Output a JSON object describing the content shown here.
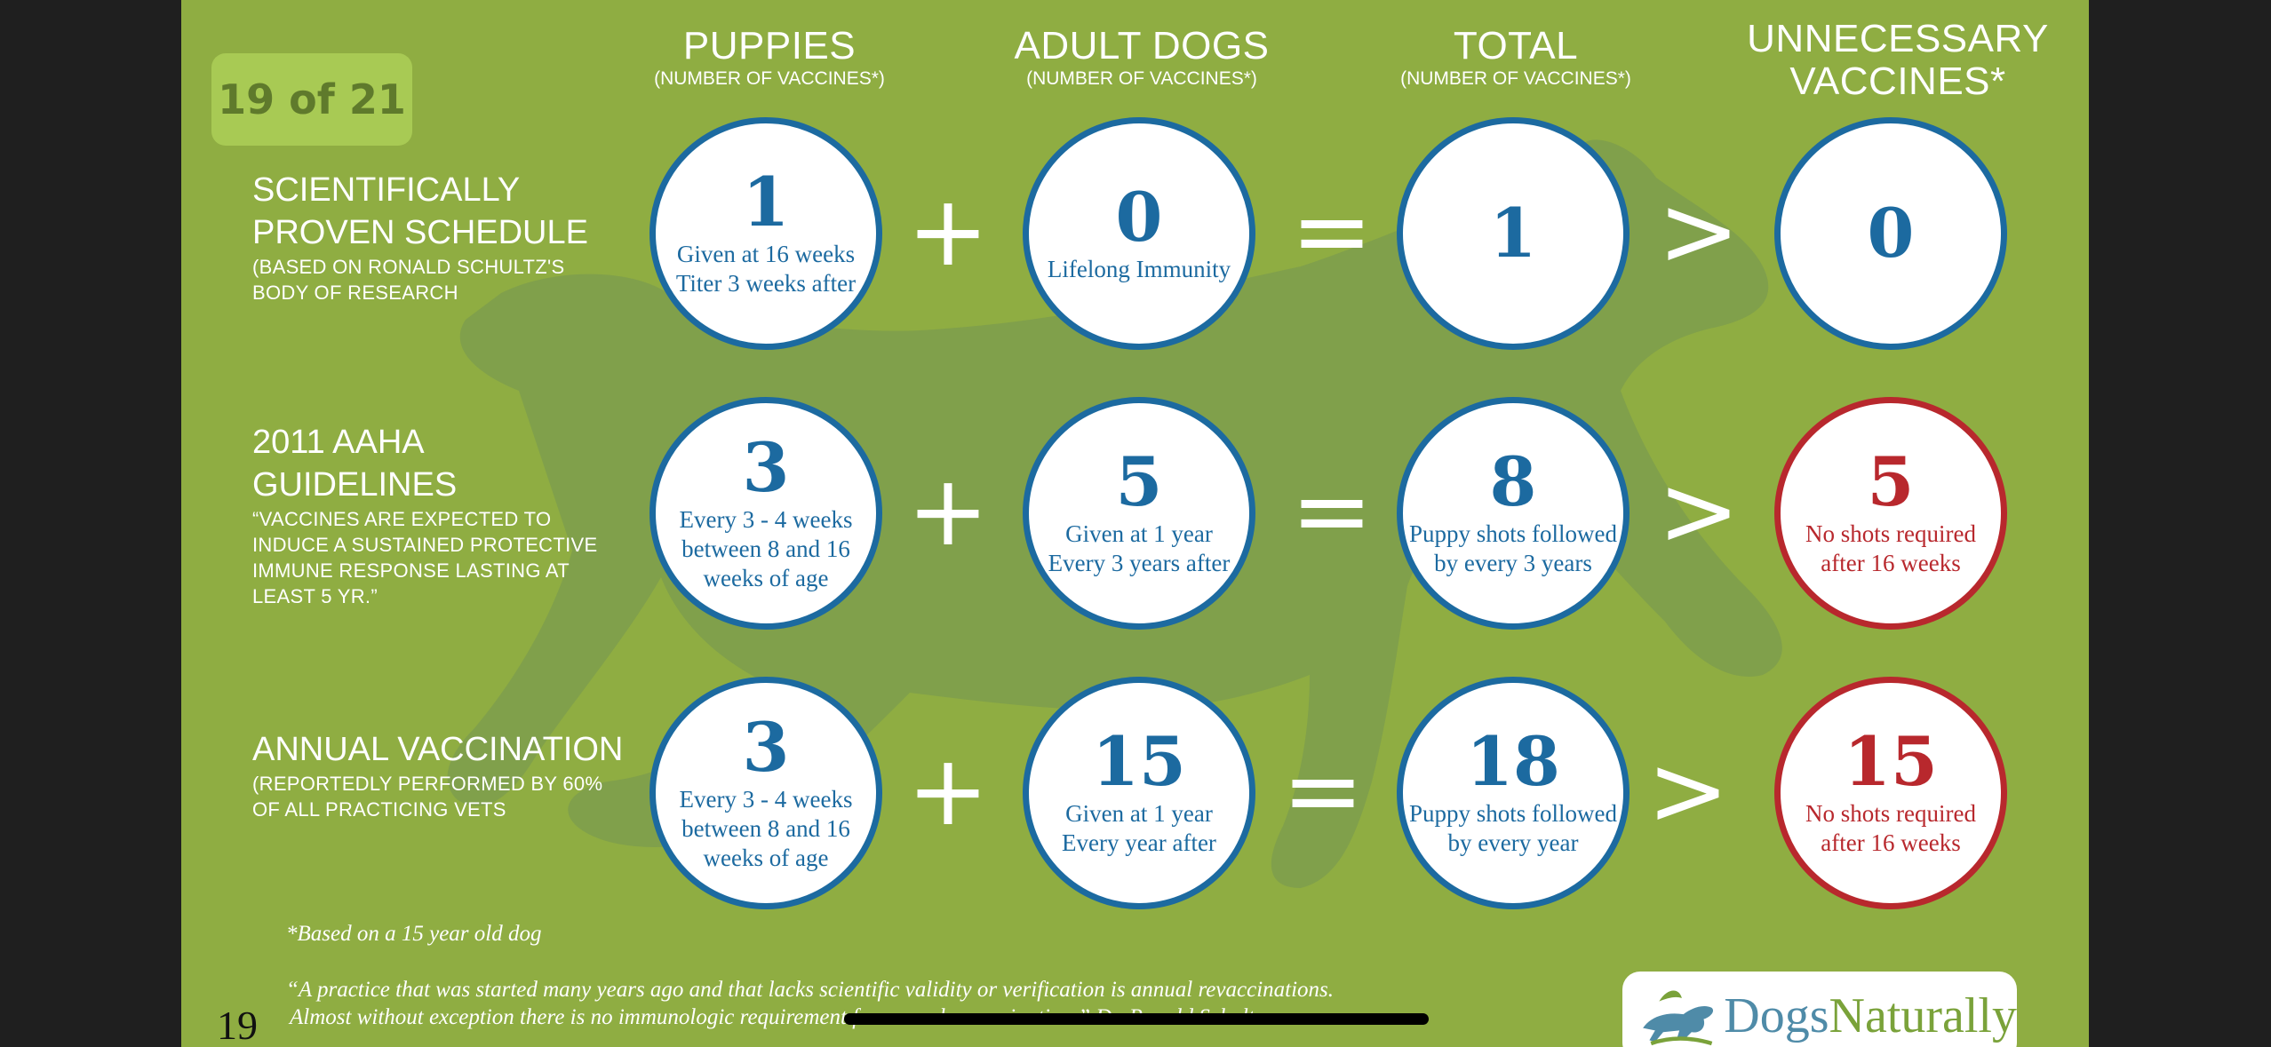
{
  "slide_counter": "19 of 21",
  "page_number": "19",
  "columns": [
    {
      "title": "PUPPIES",
      "sub": "(NUMBER OF VACCINES*)"
    },
    {
      "title": "ADULT DOGS",
      "sub": "(NUMBER OF VACCINES*)"
    },
    {
      "title": "TOTAL",
      "sub": "(NUMBER OF VACCINES*)"
    },
    {
      "title": "UNNECESSARY VACCINES*",
      "sub": ""
    }
  ],
  "operators": {
    "plus": "+",
    "equals": "=",
    "greater": ">"
  },
  "rows": [
    {
      "label": "SCIENTIFICALLY PROVEN SCHEDULE",
      "sublabel": "(BASED ON RONALD SCHULTZ'S BODY OF RESEARCH",
      "puppies": {
        "num": "1",
        "cap": "Given at 16 weeks\nTiter 3 weeks after"
      },
      "adult": {
        "num": "0",
        "cap": "Lifelong Immunity"
      },
      "total": {
        "num": "1",
        "cap": ""
      },
      "unnecessary": {
        "num": "0",
        "cap": ""
      }
    },
    {
      "label": "2011 AAHA GUIDELINES",
      "sublabel": "“VACCINES ARE EXPECTED TO INDUCE A SUSTAINED PROTECTIVE IMMUNE RESPONSE LASTING AT LEAST 5 YR.”",
      "puppies": {
        "num": "3",
        "cap": "Every 3 - 4 weeks between 8 and 16 weeks of age"
      },
      "adult": {
        "num": "5",
        "cap": "Given at 1 year\nEvery 3 years after"
      },
      "total": {
        "num": "8",
        "cap": "Puppy shots followed by every 3 years"
      },
      "unnecessary": {
        "num": "5",
        "cap": "No shots required after 16 weeks"
      }
    },
    {
      "label": "ANNUAL VACCINATION",
      "sublabel": "(REPORTEDLY PERFORMED BY 60% OF ALL PRACTICING VETS",
      "puppies": {
        "num": "3",
        "cap": "Every 3 - 4 weeks between 8 and 16 weeks of age"
      },
      "adult": {
        "num": "15",
        "cap": "Given at 1 year\nEvery year after"
      },
      "total": {
        "num": "18",
        "cap": "Puppy shots followed by every year"
      },
      "unnecessary": {
        "num": "15",
        "cap": "No shots required after 16 weeks"
      }
    }
  ],
  "footnote": "*Based on a 15 year old dog",
  "quote_line1": "“A practice that was started many years ago and that lacks scientific validity or verification is annual revaccinations.",
  "quote_line2": "Almost without exception there is no immunologic requirement for annual revaccination.” Dr. Ronald Schultz",
  "logo": {
    "part1": "Dogs",
    "part2": "Naturally"
  },
  "colors": {
    "slide_bg": "#8fad42",
    "blue": "#1c6aa0",
    "red": "#b8282d"
  }
}
